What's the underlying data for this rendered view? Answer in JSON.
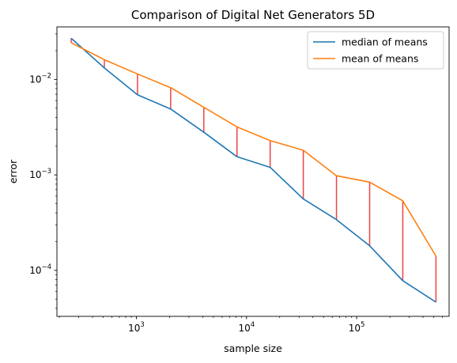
{
  "chart_data": {
    "type": "line",
    "title": "Comparison of Digital Net Generators 5D",
    "xlabel": "sample size",
    "ylabel": "error",
    "xscale": "log",
    "yscale": "log",
    "xlim": [
      190,
      690000
    ],
    "ylim": [
      3.3e-05,
      0.0355
    ],
    "grid": false,
    "legend_position": "top-right",
    "x": [
      256,
      512,
      1024,
      2048,
      4096,
      8192,
      16384,
      32768,
      65536,
      131072,
      262144,
      524288
    ],
    "x_ticks": [
      {
        "value": 1000,
        "base": "10",
        "exp": "3"
      },
      {
        "value": 10000,
        "base": "10",
        "exp": "4"
      },
      {
        "value": 100000,
        "base": "10",
        "exp": "5"
      }
    ],
    "y_ticks": [
      {
        "value": 0.01,
        "base": "10",
        "exp": "−2"
      },
      {
        "value": 0.001,
        "base": "10",
        "exp": "−3"
      },
      {
        "value": 0.0001,
        "base": "10",
        "exp": "−4"
      }
    ],
    "series": [
      {
        "name": "median of means",
        "color": "#1f77b4",
        "values": [
          0.027,
          0.0132,
          0.0069,
          0.0049,
          0.0028,
          0.00155,
          0.0012,
          0.00056,
          0.00034,
          0.000181,
          7.8e-05,
          4.65e-05
        ]
      },
      {
        "name": "mean of means",
        "color": "#ff7f0e",
        "values": [
          0.0242,
          0.0161,
          0.0114,
          0.0082,
          0.0051,
          0.00318,
          0.00229,
          0.00181,
          0.00098,
          0.00084,
          0.000535,
          0.000141
        ]
      }
    ],
    "connector_color": "#ee4444"
  }
}
